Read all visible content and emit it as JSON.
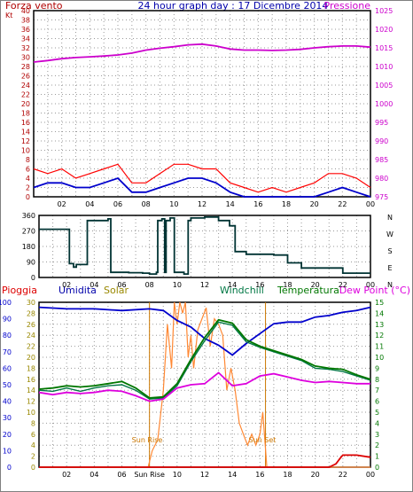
{
  "header": {
    "left_label": "Forza vento",
    "left_unit": "Kt",
    "title": "24 hour graph day : 17 Dicembre 2014",
    "right_label": "Pressione"
  },
  "bottom_header": {
    "pioggia": "Pioggia",
    "umidita": "Umidita",
    "solar": "Solar",
    "windchill": "Windchill",
    "temperatura": "Temperatura",
    "dew_point": "Dew Point (°C)"
  },
  "annotations": {
    "sun_rise": "Sun Rise",
    "sun_set": "Sun Set",
    "axis_sun_rise": "Sun Rise"
  },
  "colors": {
    "frame": "#808080",
    "axis": "#000000",
    "grid": "#9a9a9a",
    "left_axis": "#b00000",
    "pressure": "#cc00cc",
    "gust": "#ff0000",
    "wind": "#0000cc",
    "direction": "#003333",
    "humidity": "#0000cc",
    "solar": "#ff8833",
    "sun_marker": "#cc7700",
    "windchill": "#007744",
    "temperature": "#007700",
    "dewpoint": "#dd00dd",
    "rain": "#dd0000",
    "title": "#0000aa"
  },
  "chart_data": [
    {
      "type": "line",
      "name": "wind_pressure",
      "xlabels": [
        "02",
        "04",
        "06",
        "08",
        "10",
        "12",
        "14",
        "16",
        "18",
        "20",
        "22",
        "00"
      ],
      "left_ticks": [
        "40",
        "38",
        "36",
        "34",
        "32",
        "30",
        "28",
        "26",
        "24",
        "22",
        "20",
        "18",
        "16",
        "14",
        "12",
        "10",
        "8",
        "6",
        "4",
        "2",
        "0"
      ],
      "right_ticks": [
        "1025",
        "1020",
        "1015",
        "1010",
        "1005",
        "1000",
        "995",
        "990",
        "985",
        "980",
        "975"
      ],
      "left_range": [
        0,
        40
      ],
      "right_range": [
        975,
        1025
      ],
      "grid": true,
      "series": [
        {
          "name": "Pressione",
          "axis": "right",
          "x": [
            0,
            1,
            2,
            3,
            4,
            5,
            6,
            7,
            8,
            9,
            10,
            11,
            12,
            13,
            14,
            15,
            16,
            17,
            18,
            19,
            20,
            21,
            22,
            23,
            24
          ],
          "values": [
            1011.2,
            1011.6,
            1012.1,
            1012.4,
            1012.6,
            1012.8,
            1013.1,
            1013.6,
            1014.4,
            1014.9,
            1015.3,
            1015.8,
            1016.0,
            1015.5,
            1014.7,
            1014.4,
            1014.4,
            1014.3,
            1014.4,
            1014.6,
            1015.0,
            1015.3,
            1015.5,
            1015.5,
            1015.2
          ]
        },
        {
          "name": "Forza vento",
          "axis": "left",
          "x": [
            0,
            1,
            2,
            3,
            4,
            5,
            6,
            7,
            8,
            9,
            10,
            11,
            12,
            13,
            14,
            15,
            16,
            17,
            18,
            19,
            20,
            21,
            22,
            23,
            24
          ],
          "values": [
            2,
            3,
            3,
            2,
            2,
            3,
            4,
            1,
            1,
            2,
            3,
            4,
            4,
            3,
            1,
            0,
            0,
            0,
            0,
            0,
            0,
            1,
            2,
            1,
            0
          ]
        },
        {
          "name": "Raffica",
          "axis": "left",
          "x": [
            0,
            1,
            2,
            3,
            4,
            5,
            6,
            7,
            8,
            9,
            10,
            11,
            12,
            13,
            14,
            15,
            16,
            17,
            18,
            19,
            20,
            21,
            22,
            23,
            24
          ],
          "values": [
            6,
            5,
            6,
            4,
            5,
            6,
            7,
            3,
            3,
            5,
            7,
            7,
            6,
            6,
            3,
            2,
            1,
            2,
            1,
            2,
            3,
            5,
            5,
            4,
            2
          ]
        }
      ]
    },
    {
      "type": "line",
      "name": "wind_direction",
      "xlabels": [
        "02",
        "04",
        "06",
        "08",
        "10",
        "12",
        "14",
        "16",
        "18",
        "20",
        "22",
        "00"
      ],
      "left_ticks": [
        "360",
        "270",
        "180",
        "90",
        "0"
      ],
      "right_labels": [
        "N",
        "W",
        "S",
        "E",
        "N"
      ],
      "ylim": [
        0,
        360
      ],
      "grid": true,
      "series": [
        {
          "name": "Direzione",
          "x": [
            0,
            1.9,
            2.2,
            2.5,
            2.7,
            3.0,
            3.5,
            4.5,
            5.0,
            5.2,
            5.8,
            6.5,
            7.5,
            8.0,
            8.2,
            8.5,
            8.6,
            8.9,
            9.1,
            9.2,
            9.5,
            9.8,
            10.5,
            10.8,
            11.0,
            12.0,
            13.0,
            13.8,
            14.2,
            15.0,
            16.0,
            16.5,
            17.0,
            18.0,
            19.0,
            20.0,
            21.0,
            21.8,
            22.0,
            23.0,
            24.0
          ],
          "values": [
            280,
            280,
            80,
            60,
            75,
            75,
            330,
            330,
            340,
            30,
            30,
            28,
            25,
            20,
            20,
            30,
            330,
            340,
            30,
            330,
            345,
            30,
            20,
            330,
            345,
            350,
            330,
            300,
            150,
            135,
            135,
            135,
            130,
            85,
            55,
            55,
            55,
            55,
            25,
            25,
            25
          ]
        }
      ]
    },
    {
      "type": "line",
      "name": "humidity_temperature",
      "xlabels": [
        "02",
        "04",
        "06",
        "Sun Rise",
        "10",
        "12",
        "14",
        "16",
        "18",
        "20",
        "22",
        "00"
      ],
      "left_ticks": [
        "100",
        "90",
        "80",
        "70",
        "60",
        "50",
        "40",
        "30",
        "20",
        "10",
        "0"
      ],
      "left2_ticks": [
        "30",
        "28",
        "26",
        "24",
        "22",
        "20",
        "18",
        "16",
        "14",
        "12",
        "10",
        "8",
        "6",
        "4",
        "2",
        "0"
      ],
      "right_ticks": [
        "15",
        "14",
        "13",
        "12",
        "11",
        "10",
        "9",
        "8",
        "7",
        "6",
        "5",
        "4",
        "3",
        "2",
        "1",
        "0"
      ],
      "left_range": [
        0,
        100
      ],
      "right_range": [
        0,
        15
      ],
      "grid": true,
      "series": [
        {
          "name": "Umidita",
          "x": [
            0,
            2,
            4,
            6,
            8,
            9,
            10,
            11,
            12,
            13,
            14,
            15,
            16,
            17,
            18,
            19,
            20,
            21,
            22,
            23,
            24
          ],
          "values": [
            97,
            96,
            96,
            95,
            96,
            95,
            89,
            85,
            78,
            74,
            68,
            75,
            81,
            87,
            88,
            88,
            91,
            92,
            94,
            95,
            97
          ]
        },
        {
          "name": "Temperatura",
          "x": [
            0,
            1,
            2,
            3,
            4,
            5,
            6,
            7,
            8,
            9,
            10,
            11,
            12,
            13,
            14,
            15,
            16,
            17,
            18,
            19,
            20,
            21,
            22,
            23,
            24
          ],
          "values": [
            7.1,
            7.2,
            7.4,
            7.3,
            7.4,
            7.6,
            7.8,
            7.2,
            6.3,
            6.4,
            7.6,
            9.8,
            11.8,
            13.4,
            13.1,
            11.6,
            11.0,
            10.6,
            10.2,
            9.8,
            9.2,
            9.0,
            8.9,
            8.4,
            8.0
          ]
        },
        {
          "name": "Windchill",
          "x": [
            0,
            1,
            2,
            3,
            4,
            5,
            6,
            7,
            8,
            9,
            10,
            11,
            12,
            13,
            14,
            15,
            16,
            17,
            18,
            19,
            20,
            21,
            22,
            23,
            24
          ],
          "values": [
            7.0,
            6.9,
            7.2,
            6.9,
            7.2,
            7.4,
            7.5,
            7.0,
            6.2,
            6.3,
            7.4,
            9.6,
            11.5,
            13.2,
            12.9,
            11.4,
            10.9,
            10.5,
            10.1,
            9.7,
            9.0,
            8.9,
            8.7,
            8.3,
            7.9
          ]
        },
        {
          "name": "Dew Point",
          "x": [
            0,
            1,
            2,
            3,
            4,
            5,
            6,
            7,
            8,
            9,
            10,
            11,
            12,
            13,
            14,
            15,
            16,
            17,
            18,
            19,
            20,
            21,
            22,
            23,
            24
          ],
          "values": [
            6.8,
            6.6,
            6.8,
            6.7,
            6.8,
            7.0,
            6.9,
            6.5,
            6.0,
            6.2,
            7.2,
            7.5,
            7.6,
            8.6,
            7.4,
            7.6,
            8.3,
            8.5,
            8.2,
            7.9,
            7.7,
            7.8,
            7.7,
            7.6,
            7.6
          ]
        },
        {
          "name": "Solar",
          "x": [
            0,
            7.9,
            8.2,
            8.6,
            9.0,
            9.3,
            9.6,
            9.8,
            10.0,
            10.2,
            10.4,
            10.6,
            10.8,
            11.0,
            11.2,
            11.5,
            11.8,
            12.1,
            12.4,
            12.7,
            13.0,
            13.3,
            13.6,
            13.9,
            14.2,
            14.5,
            14.8,
            15.1,
            15.4,
            15.7,
            16.0,
            16.2,
            16.5,
            24
          ],
          "values": [
            0,
            0,
            3,
            5,
            14,
            26,
            18,
            30,
            26,
            30,
            28,
            30,
            20,
            24,
            18,
            25,
            27,
            29,
            22,
            27,
            26,
            24,
            14,
            18,
            14,
            8,
            6,
            4,
            6,
            4,
            6,
            10,
            0,
            0
          ]
        },
        {
          "name": "Pioggia",
          "x": [
            0,
            21.0,
            21.5,
            21.8,
            22.0,
            23.0,
            24.0
          ],
          "values": [
            0,
            0,
            0.3,
            0.8,
            1.1,
            1.1,
            0.9
          ]
        }
      ]
    }
  ]
}
